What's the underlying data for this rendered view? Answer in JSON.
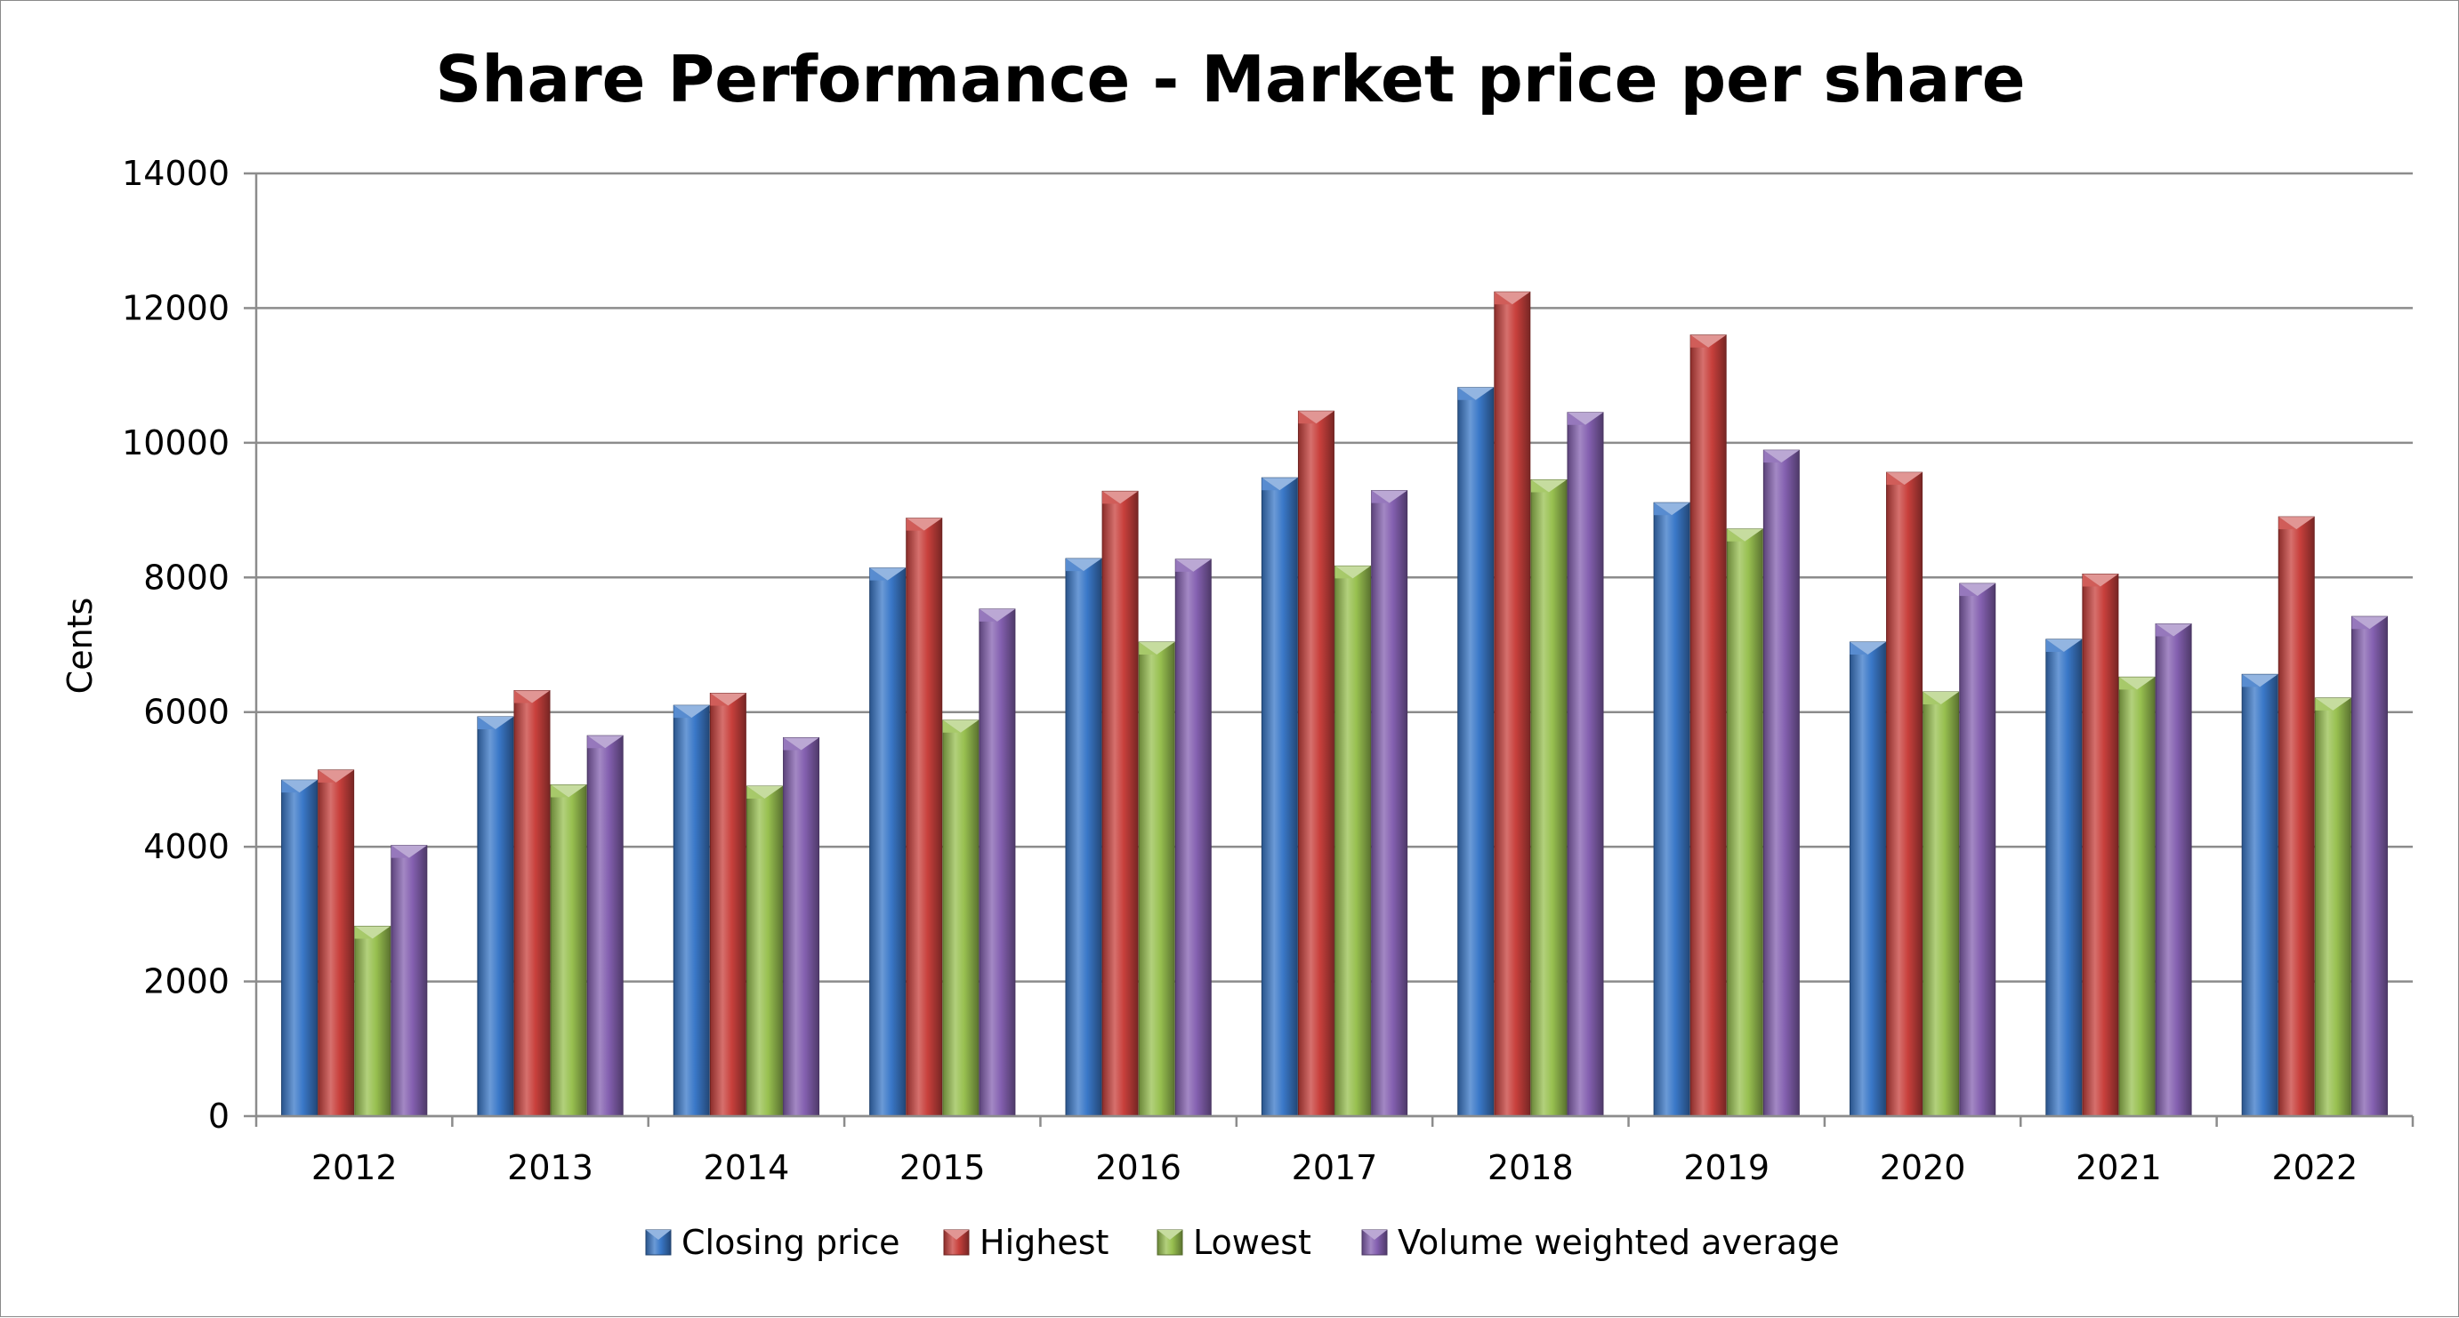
{
  "chart_data": {
    "type": "bar",
    "title": "Share Performance - Market price per share",
    "xlabel": "",
    "ylabel": "Cents",
    "ylim": [
      0,
      14000
    ],
    "yticks": [
      0,
      2000,
      4000,
      6000,
      8000,
      10000,
      12000,
      14000
    ],
    "grid": true,
    "legend_position": "bottom",
    "categories": [
      "2012",
      "2013",
      "2014",
      "2015",
      "2016",
      "2017",
      "2018",
      "2019",
      "2020",
      "2021",
      "2022"
    ],
    "series": [
      {
        "name": "Closing price",
        "color": "#3a78c8",
        "values": [
          4990,
          5930,
          6100,
          8140,
          8280,
          9480,
          10820,
          9110,
          7040,
          7080,
          6560
        ]
      },
      {
        "name": "Highest",
        "color": "#c8403c",
        "values": [
          5140,
          6320,
          6280,
          8880,
          9280,
          10470,
          12240,
          11600,
          9560,
          8050,
          8900
        ]
      },
      {
        "name": "Lowest",
        "color": "#98c050",
        "values": [
          2820,
          4920,
          4900,
          5880,
          7040,
          8170,
          9450,
          8720,
          6300,
          6520,
          6210
        ]
      },
      {
        "name": "Volume weighted average",
        "color": "#8460b0",
        "values": [
          4020,
          5650,
          5620,
          7530,
          8270,
          9290,
          10450,
          9890,
          7910,
          7310,
          7420
        ]
      }
    ]
  }
}
